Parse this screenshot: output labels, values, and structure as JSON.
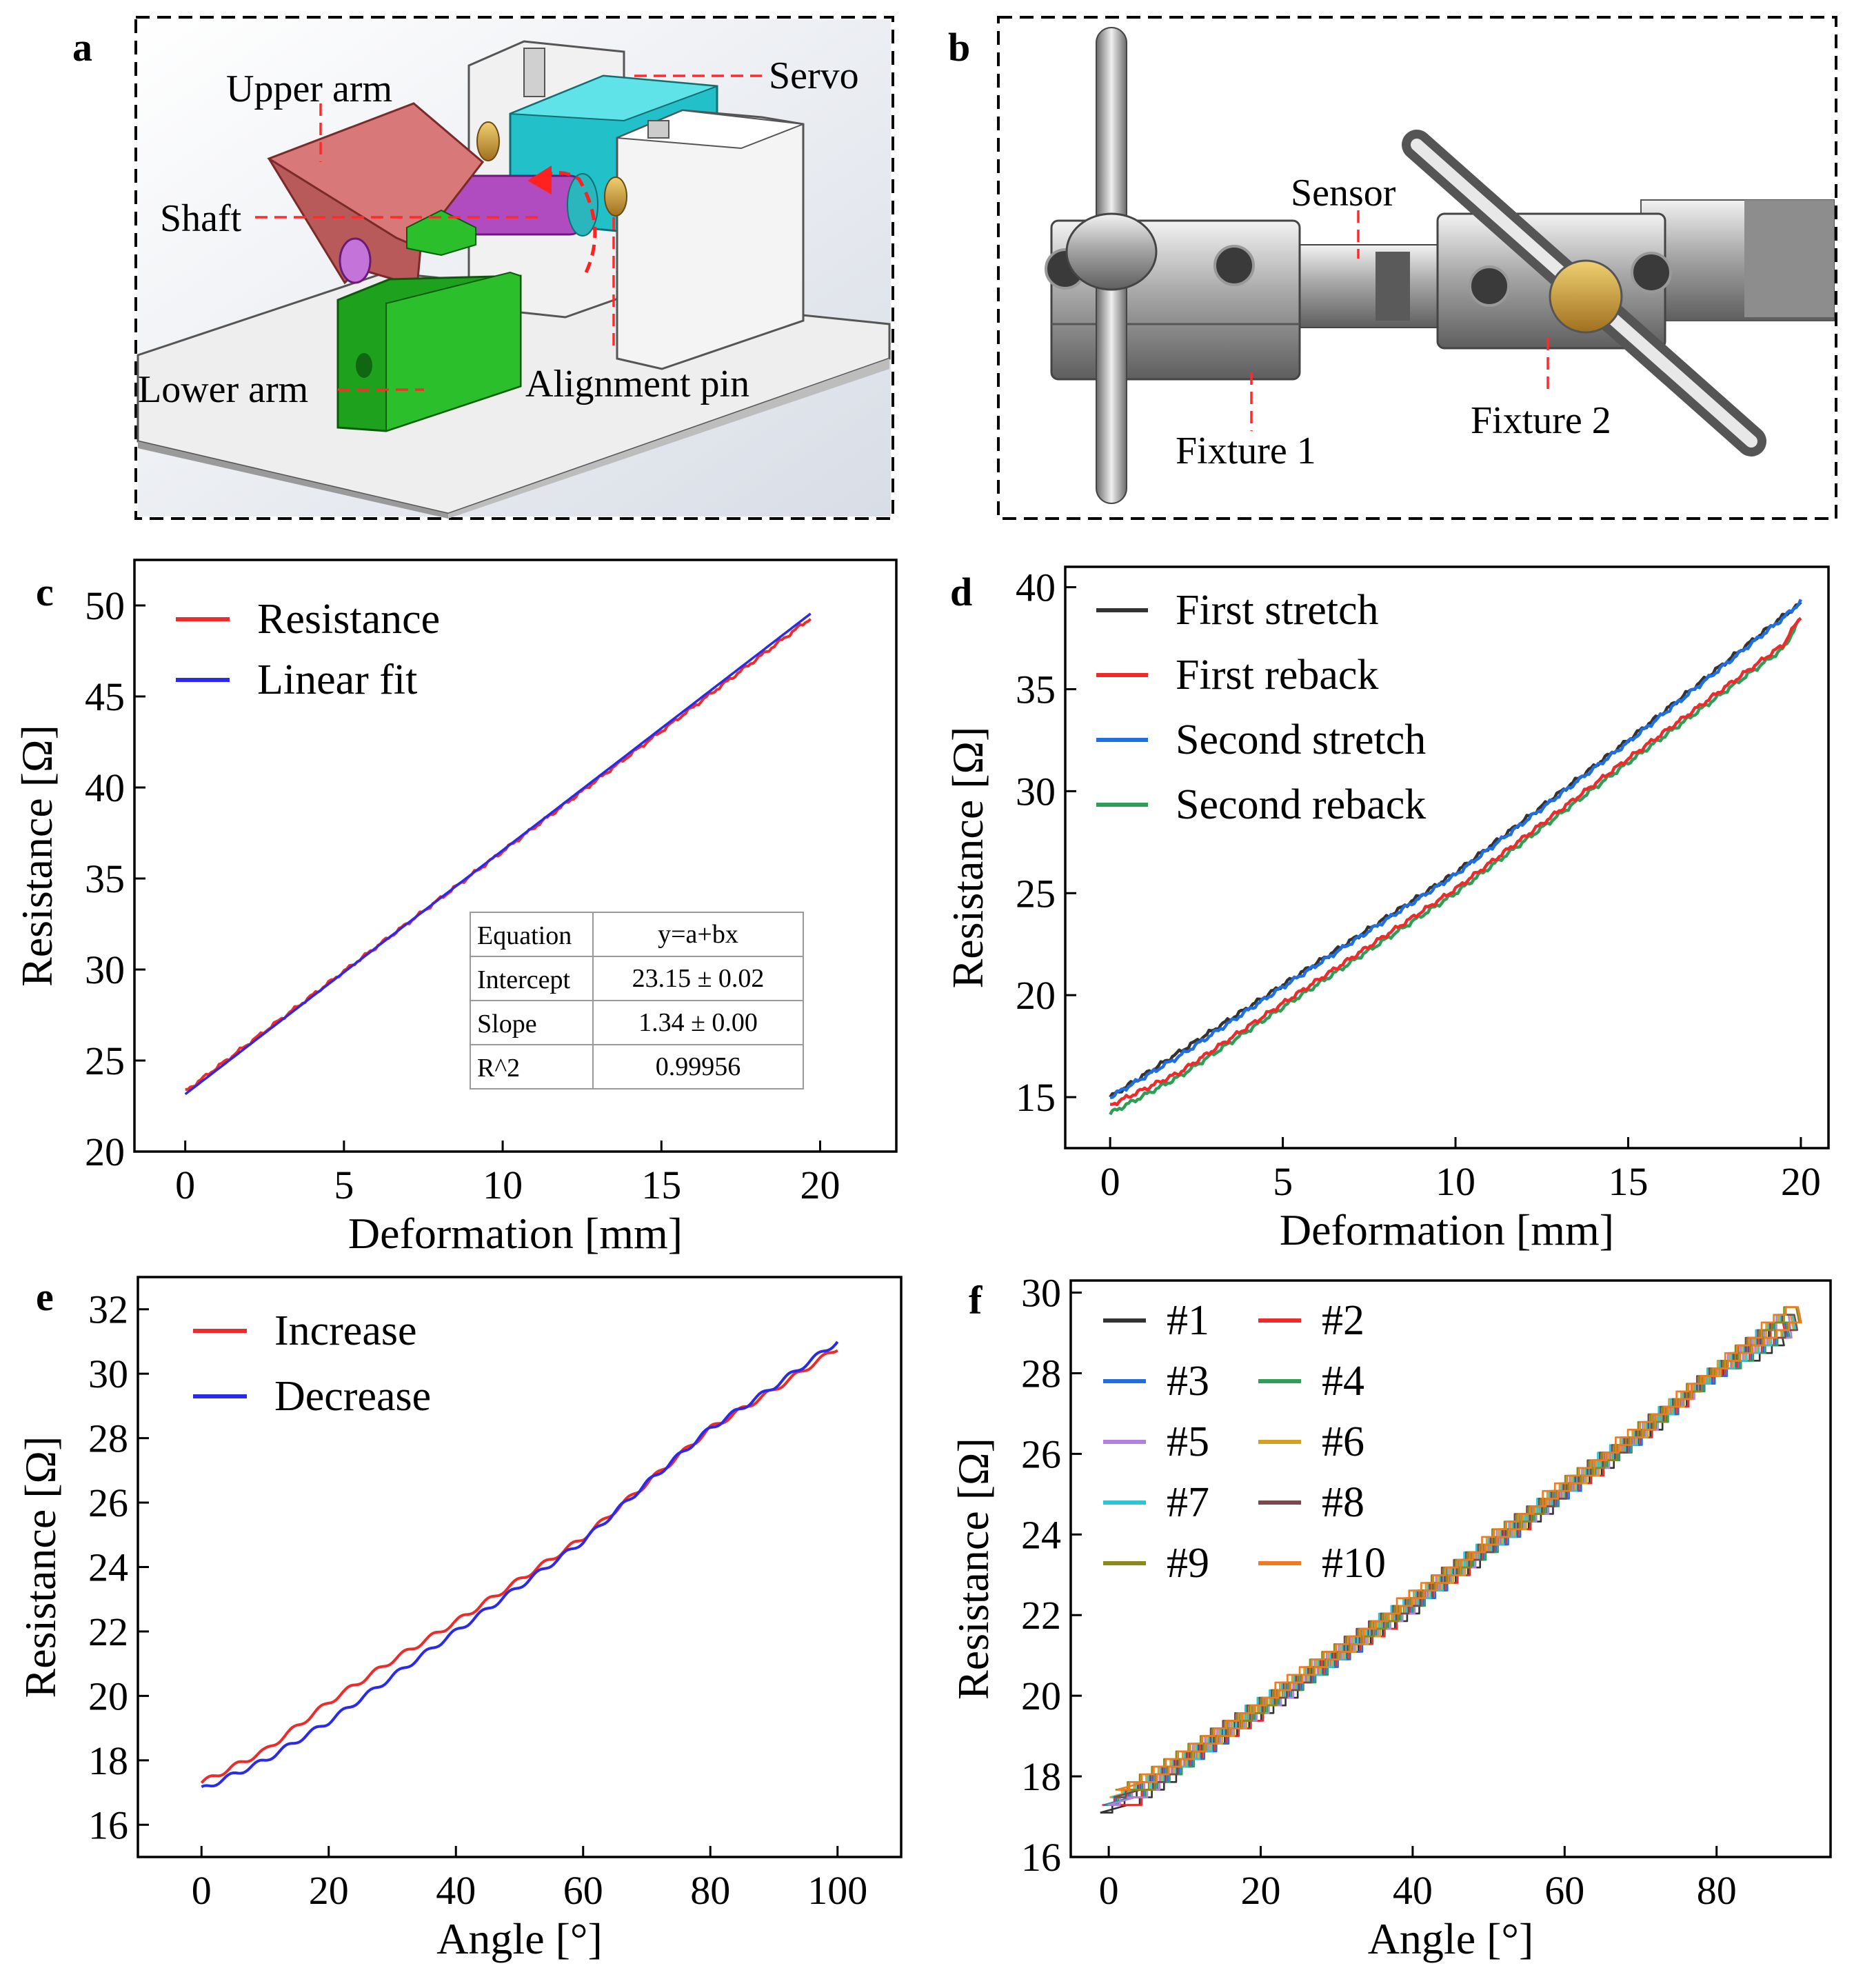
{
  "panels": {
    "a": {
      "label": "a",
      "annotations": [
        "Upper arm",
        "Servo",
        "Shaft",
        "Lower arm",
        "Alignment pin"
      ]
    },
    "b": {
      "label": "b",
      "annotations": [
        "Sensor",
        "Fixture 1",
        "Fixture 2"
      ]
    }
  },
  "colors": {
    "red": "#ee2a2a",
    "blue": "#2a2aee",
    "black": "#333333",
    "blue2": "#1f6fe0",
    "green": "#2e9e57",
    "purple": "#b37fe0",
    "gold": "#d4a020",
    "cyan": "#2ec4d6",
    "brown": "#7a4a4a",
    "olive": "#8a8a1a",
    "orange": "#f07a20"
  },
  "chart_data": [
    {
      "panel": "c",
      "type": "line",
      "xlabel": "Deformation [mm]",
      "ylabel": "Resistance [Ω]",
      "xlim": [
        -1.6,
        22.4
      ],
      "ylim": [
        20,
        52.5
      ],
      "xticks": [
        0,
        5,
        10,
        15,
        20
      ],
      "yticks": [
        20,
        25,
        30,
        35,
        40,
        45,
        50
      ],
      "legend_position": "top-left",
      "series": [
        {
          "name": "Resistance",
          "color": "#ee2a2a",
          "x": [
            0,
            19.7
          ],
          "y": [
            23.3,
            49.3
          ]
        },
        {
          "name": "Linear fit",
          "color": "#2a2aee",
          "x": [
            0,
            19.7
          ],
          "y": [
            23.15,
            49.55
          ]
        }
      ],
      "fit_table": [
        [
          "Equation",
          "y=a+bx"
        ],
        [
          "Intercept",
          "23.15 ± 0.02"
        ],
        [
          "Slope",
          "1.34 ± 0.00"
        ],
        [
          "R^2",
          "0.99956"
        ]
      ]
    },
    {
      "panel": "d",
      "type": "line",
      "xlabel": "Deformation [mm]",
      "ylabel": "Resistance [Ω]",
      "xlim": [
        -1.3,
        20.8
      ],
      "ylim": [
        12.5,
        41
      ],
      "xticks": [
        0,
        5,
        10,
        15,
        20
      ],
      "yticks": [
        15,
        20,
        25,
        30,
        35,
        40
      ],
      "legend_position": "top-left",
      "series": [
        {
          "name": "First stretch",
          "color": "#333333",
          "x": [
            0,
            2,
            5,
            10,
            15,
            19.5,
            20
          ],
          "y": [
            15.0,
            17.2,
            20.5,
            26.0,
            32.5,
            38.6,
            39.2
          ]
        },
        {
          "name": "First reback",
          "color": "#ee2a2a",
          "x": [
            0,
            2,
            5,
            10,
            15,
            19.5,
            20
          ],
          "y": [
            14.6,
            16.2,
            19.6,
            25.2,
            31.6,
            37.2,
            38.6
          ]
        },
        {
          "name": "Second stretch",
          "color": "#1f6fe0",
          "x": [
            0,
            2,
            5,
            10,
            15,
            19.5,
            20
          ],
          "y": [
            15.0,
            17.0,
            20.4,
            25.9,
            32.4,
            38.5,
            39.3
          ]
        },
        {
          "name": "Second reback",
          "color": "#2e9e57",
          "x": [
            0,
            2,
            5,
            10,
            15,
            19.5,
            20
          ],
          "y": [
            14.2,
            16.0,
            19.4,
            25.0,
            31.4,
            37.0,
            38.5
          ]
        }
      ]
    },
    {
      "panel": "e",
      "type": "line",
      "xlabel": "Angle [°]",
      "ylabel": "Resistance [Ω]",
      "xlim": [
        -10,
        110
      ],
      "ylim": [
        15,
        33
      ],
      "xticks": [
        0,
        20,
        40,
        60,
        80,
        100
      ],
      "yticks": [
        16,
        18,
        20,
        22,
        24,
        26,
        28,
        30,
        32
      ],
      "legend_position": "top-left",
      "series": [
        {
          "name": "Increase",
          "color": "#ee2a2a",
          "x": [
            0,
            10,
            20,
            30,
            40,
            50,
            60,
            70,
            80,
            90,
            100
          ],
          "y": [
            17.3,
            18.3,
            19.8,
            21.1,
            22.3,
            23.6,
            24.9,
            26.6,
            28.3,
            29.5,
            30.8
          ]
        },
        {
          "name": "Decrease",
          "color": "#2a2aee",
          "x": [
            0,
            10,
            20,
            30,
            40,
            50,
            60,
            70,
            80,
            90,
            100
          ],
          "y": [
            17.1,
            18.0,
            19.2,
            20.6,
            22.0,
            23.4,
            24.8,
            26.6,
            28.3,
            29.6,
            31.0
          ]
        }
      ]
    },
    {
      "panel": "f",
      "type": "line",
      "xlabel": "Angle [°]",
      "ylabel": "Resistance [Ω]",
      "xlim": [
        -5,
        95
      ],
      "ylim": [
        16,
        30.3
      ],
      "xticks": [
        0,
        20,
        40,
        60,
        80
      ],
      "yticks": [
        16,
        18,
        20,
        22,
        24,
        26,
        28,
        30
      ],
      "legend_position": "top-left",
      "legend_columns": 2,
      "loop": {
        "x_up": [
          0,
          10,
          20,
          30,
          40,
          50,
          60,
          70,
          80,
          88
        ],
        "y_up": [
          17.4,
          18.6,
          19.9,
          21.2,
          22.5,
          23.9,
          25.3,
          26.7,
          28.2,
          29.4
        ],
        "x_down": [
          90,
          80,
          70,
          60,
          50,
          40,
          30,
          20,
          10,
          4
        ],
        "y_down": [
          29.0,
          27.9,
          26.3,
          24.9,
          23.5,
          22.1,
          20.8,
          19.5,
          18.2,
          17.4
        ]
      },
      "series": [
        {
          "name": "#1",
          "color": "#333333"
        },
        {
          "name": "#2",
          "color": "#ee2a2a"
        },
        {
          "name": "#3",
          "color": "#1f6fe0"
        },
        {
          "name": "#4",
          "color": "#2e9e57"
        },
        {
          "name": "#5",
          "color": "#b37fe0"
        },
        {
          "name": "#6",
          "color": "#d4a020"
        },
        {
          "name": "#7",
          "color": "#2ec4d6"
        },
        {
          "name": "#8",
          "color": "#7a4a4a"
        },
        {
          "name": "#9",
          "color": "#8a8a1a"
        },
        {
          "name": "#10",
          "color": "#f07a20"
        }
      ]
    }
  ]
}
